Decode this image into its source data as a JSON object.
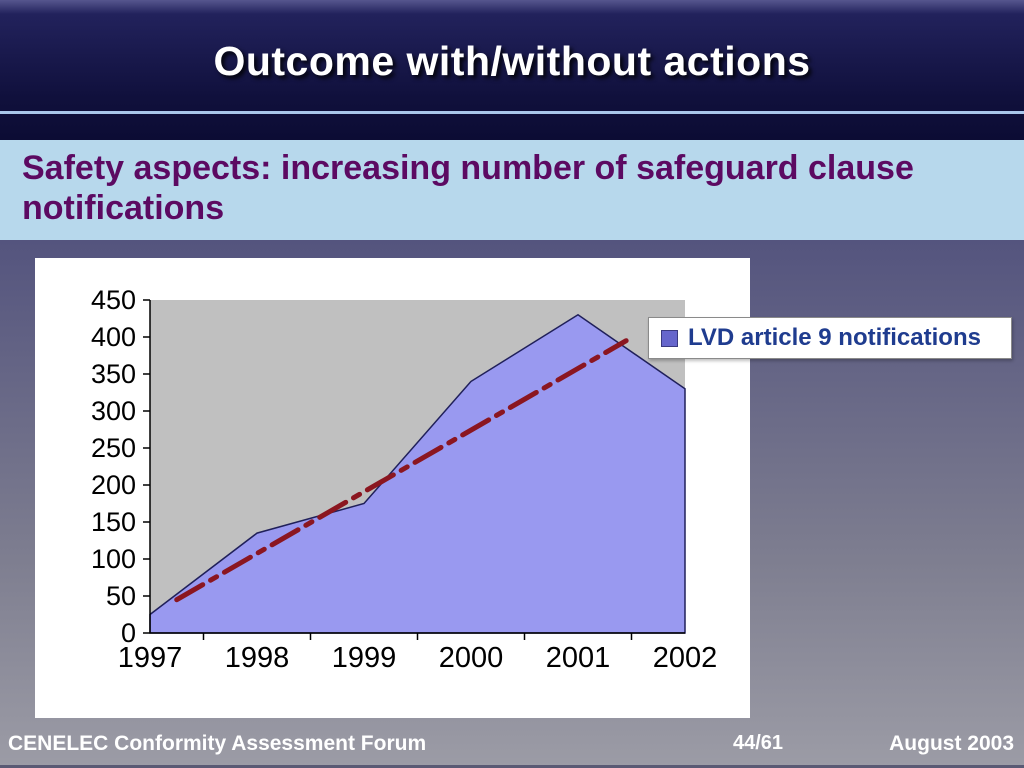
{
  "header": {
    "title": "Outcome with/without actions"
  },
  "subtitle": {
    "text": "Safety aspects: increasing number of safeguard clause notifications"
  },
  "footer": {
    "left": "CENELEC Conformity Assessment Forum",
    "page": "44/61",
    "right": "August 2003"
  },
  "legend": {
    "marker_color": "#6666cc"
  },
  "colors": {
    "banner": "#10103c",
    "banner_line": "#a9c6ea",
    "subtitle_band": "#b7d8ec",
    "subtitle_text": "#5c0a62",
    "area_fill": "#9999f0",
    "plot_background": "#c0c0c0",
    "trend_line": "#8b1620"
  },
  "chart_data": {
    "type": "area",
    "title": "",
    "xlabel": "",
    "ylabel": "",
    "x": [
      "1997",
      "1998",
      "1999",
      "2000",
      "2001",
      "2002"
    ],
    "series": [
      {
        "name": "LVD article 9 notifications",
        "values": [
          25,
          135,
          175,
          340,
          430,
          330
        ],
        "color": "#9999f0",
        "outline": "#20205a"
      }
    ],
    "trend_line": {
      "from": {
        "x": 1997.25,
        "value": 45
      },
      "to": {
        "x": 2001.45,
        "value": 395
      },
      "color": "#8b1620",
      "style": "dash-dot"
    },
    "ylim": [
      0,
      450
    ],
    "ytick_step": 50,
    "plot_bg": "#c0c0c0",
    "grid": false,
    "legend_position": "top-right"
  }
}
